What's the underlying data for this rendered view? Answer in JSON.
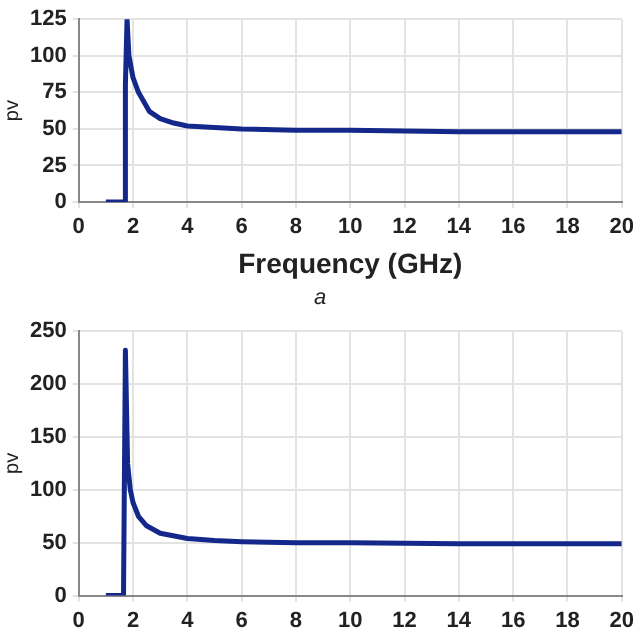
{
  "chart_data": [
    {
      "type": "line",
      "xlabel": "Frequency (GHz)",
      "ylabel": "pv",
      "annotations": [
        "a"
      ],
      "grid": true,
      "legend": false,
      "marker": "none",
      "line_style": "solid",
      "xlim": [
        0,
        20
      ],
      "xticks": [
        0,
        2,
        4,
        6,
        8,
        10,
        12,
        14,
        16,
        18,
        20
      ],
      "ylim": [
        0,
        125
      ],
      "yticks": [
        0,
        25,
        50,
        75,
        100,
        125
      ],
      "x": [
        1,
        1.7,
        1.72,
        1.78,
        1.85,
        2,
        2.2,
        2.6,
        3,
        3.5,
        4,
        5,
        6,
        8,
        10,
        14,
        20
      ],
      "series": [
        {
          "color": "#14288c",
          "values": [
            0,
            0,
            80,
            125,
            100,
            85,
            75,
            62,
            57,
            54,
            52,
            51,
            50,
            49,
            49,
            48,
            48
          ]
        }
      ]
    },
    {
      "type": "line",
      "ylabel": "pv",
      "grid": true,
      "legend": false,
      "marker": "none",
      "line_style": "solid",
      "xlim": [
        0,
        20
      ],
      "xticks": [
        0,
        2,
        4,
        6,
        8,
        10,
        12,
        14,
        16,
        18,
        20
      ],
      "ylim": [
        0,
        250
      ],
      "yticks": [
        0,
        50,
        100,
        150,
        200,
        250
      ],
      "x": [
        1,
        1.65,
        1.72,
        1.8,
        1.9,
        2,
        2.2,
        2.5,
        3,
        4,
        5,
        6,
        8,
        10,
        14,
        20
      ],
      "series": [
        {
          "color": "#14288c",
          "values": [
            0,
            0,
            232,
            125,
            100,
            88,
            75,
            66,
            59,
            54,
            52,
            51,
            50,
            50,
            49,
            49
          ]
        }
      ]
    }
  ]
}
